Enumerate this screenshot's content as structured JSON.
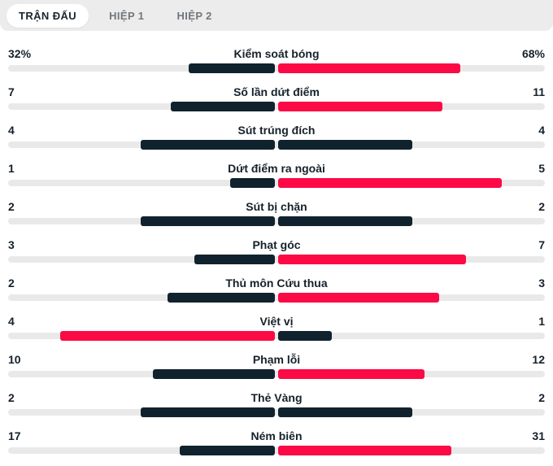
{
  "tabs": {
    "items": [
      {
        "label": "TRẬN ĐẤU",
        "active": true
      },
      {
        "label": "HIỆP 1",
        "active": false
      },
      {
        "label": "HIỆP 2",
        "active": false
      }
    ]
  },
  "colors": {
    "highlight_bar": "#fc0a45",
    "neutral_bar": "#10222d",
    "track": "#e9e9e9",
    "tabbar_bg": "#ececec",
    "active_tab_bg": "#ffffff",
    "active_tab_text": "#1a242e",
    "inactive_tab_text": "#72777c",
    "stat_text": "#16212b"
  },
  "chart_data": {
    "type": "bar",
    "orientation": "paired-horizontal",
    "legend_position": "none",
    "rows": [
      {
        "label": "Kiểm soát bóng",
        "left_display": "32%",
        "right_display": "68%",
        "left_value": 32,
        "right_value": 68
      },
      {
        "label": "Số lần dứt điểm",
        "left_display": "7",
        "right_display": "11",
        "left_value": 7,
        "right_value": 11
      },
      {
        "label": "Sút trúng đích",
        "left_display": "4",
        "right_display": "4",
        "left_value": 4,
        "right_value": 4
      },
      {
        "label": "Dứt điểm ra ngoài",
        "left_display": "1",
        "right_display": "5",
        "left_value": 1,
        "right_value": 5
      },
      {
        "label": "Sút bị chặn",
        "left_display": "2",
        "right_display": "2",
        "left_value": 2,
        "right_value": 2
      },
      {
        "label": "Phạt góc",
        "left_display": "3",
        "right_display": "7",
        "left_value": 3,
        "right_value": 7
      },
      {
        "label": "Thủ môn Cứu thua",
        "left_display": "2",
        "right_display": "3",
        "left_value": 2,
        "right_value": 3
      },
      {
        "label": "Việt vị",
        "left_display": "4",
        "right_display": "1",
        "left_value": 4,
        "right_value": 1
      },
      {
        "label": "Phạm lỗi",
        "left_display": "10",
        "right_display": "12",
        "left_value": 10,
        "right_value": 12
      },
      {
        "label": "Thẻ Vàng",
        "left_display": "2",
        "right_display": "2",
        "left_value": 2,
        "right_value": 2
      },
      {
        "label": "Ném biên",
        "left_display": "17",
        "right_display": "31",
        "left_value": 17,
        "right_value": 31
      }
    ]
  }
}
